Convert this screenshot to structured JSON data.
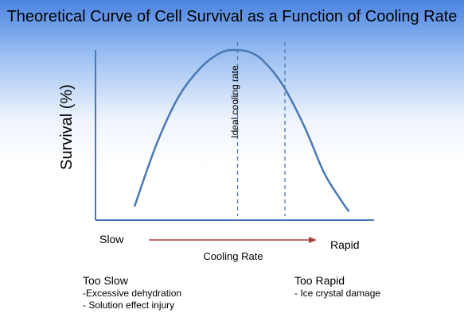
{
  "chart_data": {
    "type": "line",
    "title": "Theoretical Curve of Cell Survival as a Function of Cooling Rate",
    "ylabel": "Survival  (%)",
    "xlabel": "Cooling Rate",
    "x_start_label": "Slow",
    "x_end_label": "Rapid",
    "ideal_band_label": "Ideal cooling rate",
    "xlim": [
      0,
      100
    ],
    "ylim": [
      0,
      100
    ],
    "series": [
      {
        "x": [
          14,
          22,
          30,
          38,
          45,
          50,
          55,
          60,
          67,
          75,
          82,
          88,
          91
        ],
        "values": [
          8,
          45,
          73,
          90,
          98.5,
          100,
          99,
          94,
          80,
          55,
          28,
          12,
          5
        ]
      }
    ],
    "ideal_band": [
      51,
      68
    ],
    "colors": {
      "curve": "#4a78b5",
      "band": "#4a78b5",
      "axis": "#4a78b5",
      "arrow": "#a5413d"
    }
  },
  "notes": {
    "too_slow": {
      "heading": "Too Slow",
      "items": [
        "-Excessive dehydration",
        "- Solution effect injury"
      ]
    },
    "too_rapid": {
      "heading": "Too Rapid",
      "items": [
        "- Ice crystal damage"
      ]
    }
  }
}
